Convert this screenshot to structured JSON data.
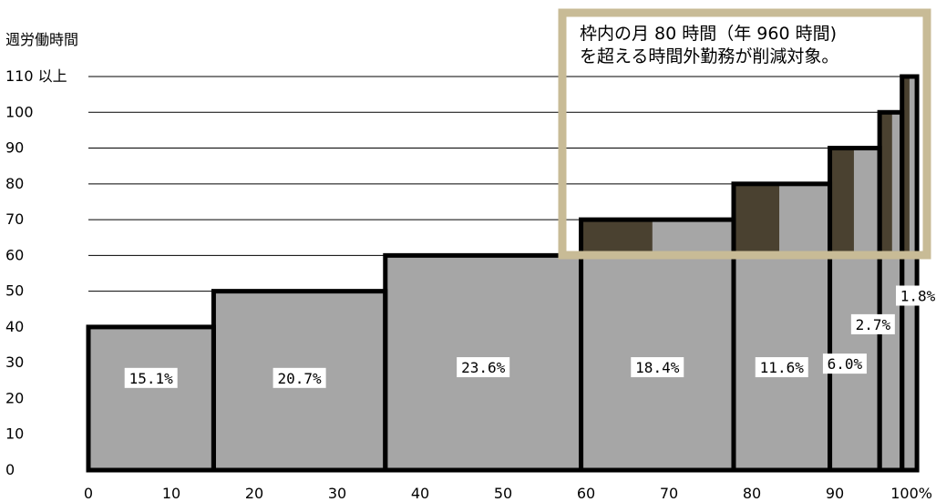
{
  "chart_data": {
    "type": "bar",
    "subtype": "variable-width step chart (cumulative share of workers vs weekly working hours)",
    "ylabel": "週労働時間",
    "xlabel": "",
    "x_ticks": [
      "0",
      "10",
      "20",
      "30",
      "40",
      "50",
      "60",
      "70",
      "80",
      "90",
      "100%"
    ],
    "y_ticks": [
      "0",
      "10",
      "20",
      "30",
      "40",
      "50",
      "60",
      "70",
      "80",
      "90",
      "100",
      "110 以上"
    ],
    "xlim": [
      0,
      100
    ],
    "ylim": [
      0,
      110
    ],
    "grid": "horizontal",
    "segments": [
      {
        "start": 0.0,
        "end": 15.1,
        "share": "15.1%",
        "hours": 40,
        "highlight_from": null
      },
      {
        "start": 15.1,
        "end": 35.8,
        "share": "20.7%",
        "hours": 50,
        "highlight_from": null
      },
      {
        "start": 35.8,
        "end": 59.4,
        "share": "23.6%",
        "hours": 60,
        "highlight_from": null
      },
      {
        "start": 59.4,
        "end": 77.8,
        "share": "18.4%",
        "hours": 70,
        "highlight_from": 68.0
      },
      {
        "start": 77.8,
        "end": 89.4,
        "share": "11.6%",
        "hours": 80,
        "highlight_from": 83.3
      },
      {
        "start": 89.4,
        "end": 95.4,
        "share": "6.0%",
        "hours": 90,
        "highlight_from": 92.3
      },
      {
        "start": 95.4,
        "end": 98.1,
        "share": "2.7%",
        "hours": 100,
        "highlight_from": 96.9
      },
      {
        "start": 98.1,
        "end": 99.9,
        "share": "1.8%",
        "hours": 110,
        "highlight_from": 99.0
      }
    ],
    "annotation": {
      "lines": [
        "枠内の月 80 時間（年 960 時間)",
        "を超える時間外勤務が削減対象。"
      ]
    },
    "colors": {
      "bar_fill": "#a6a6a6",
      "highlight_fill": "#4a4130",
      "bar_outline": "#000000",
      "annotation_frame": "#c8bb96",
      "grid": "#000000"
    }
  }
}
